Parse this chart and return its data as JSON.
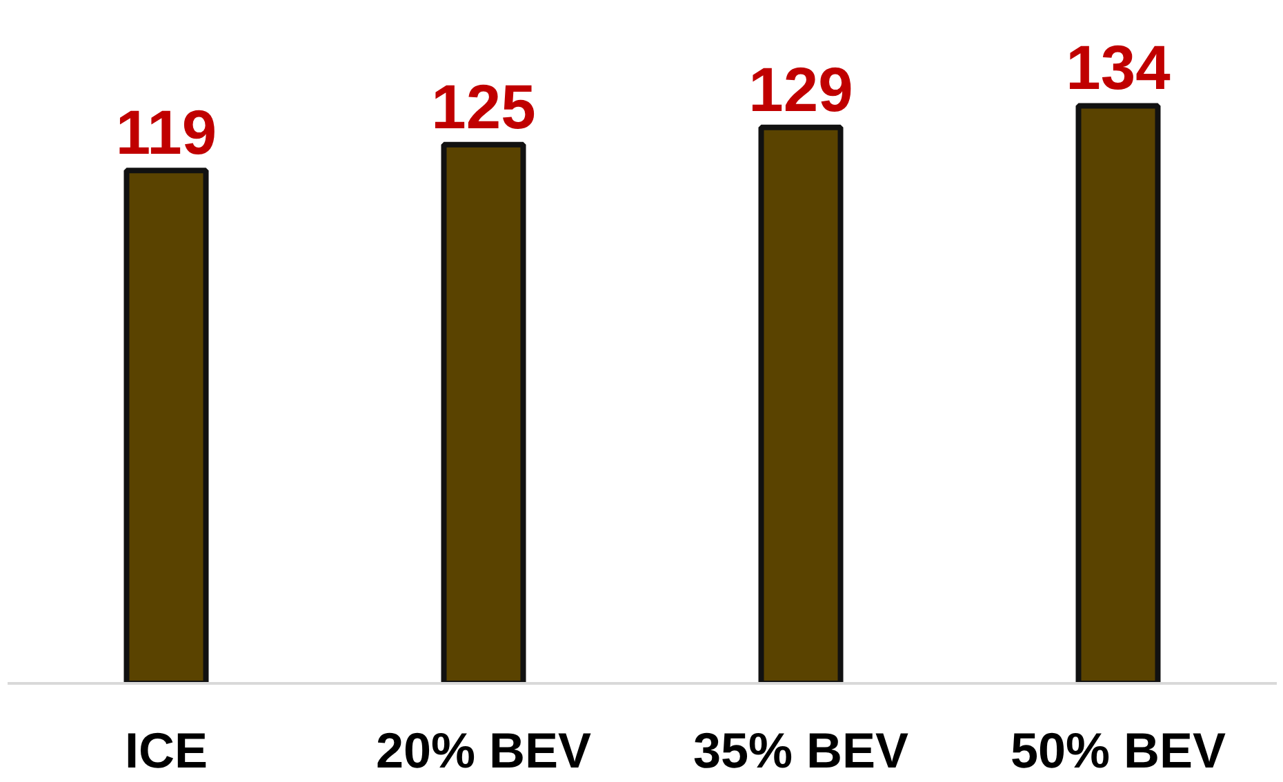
{
  "chart_data": {
    "type": "bar",
    "categories": [
      "ICE",
      "20% BEV",
      "35% BEV",
      "50% BEV"
    ],
    "values": [
      119,
      125,
      129,
      134
    ],
    "color": "#5a4300",
    "data_labels": true,
    "grid": false
  }
}
